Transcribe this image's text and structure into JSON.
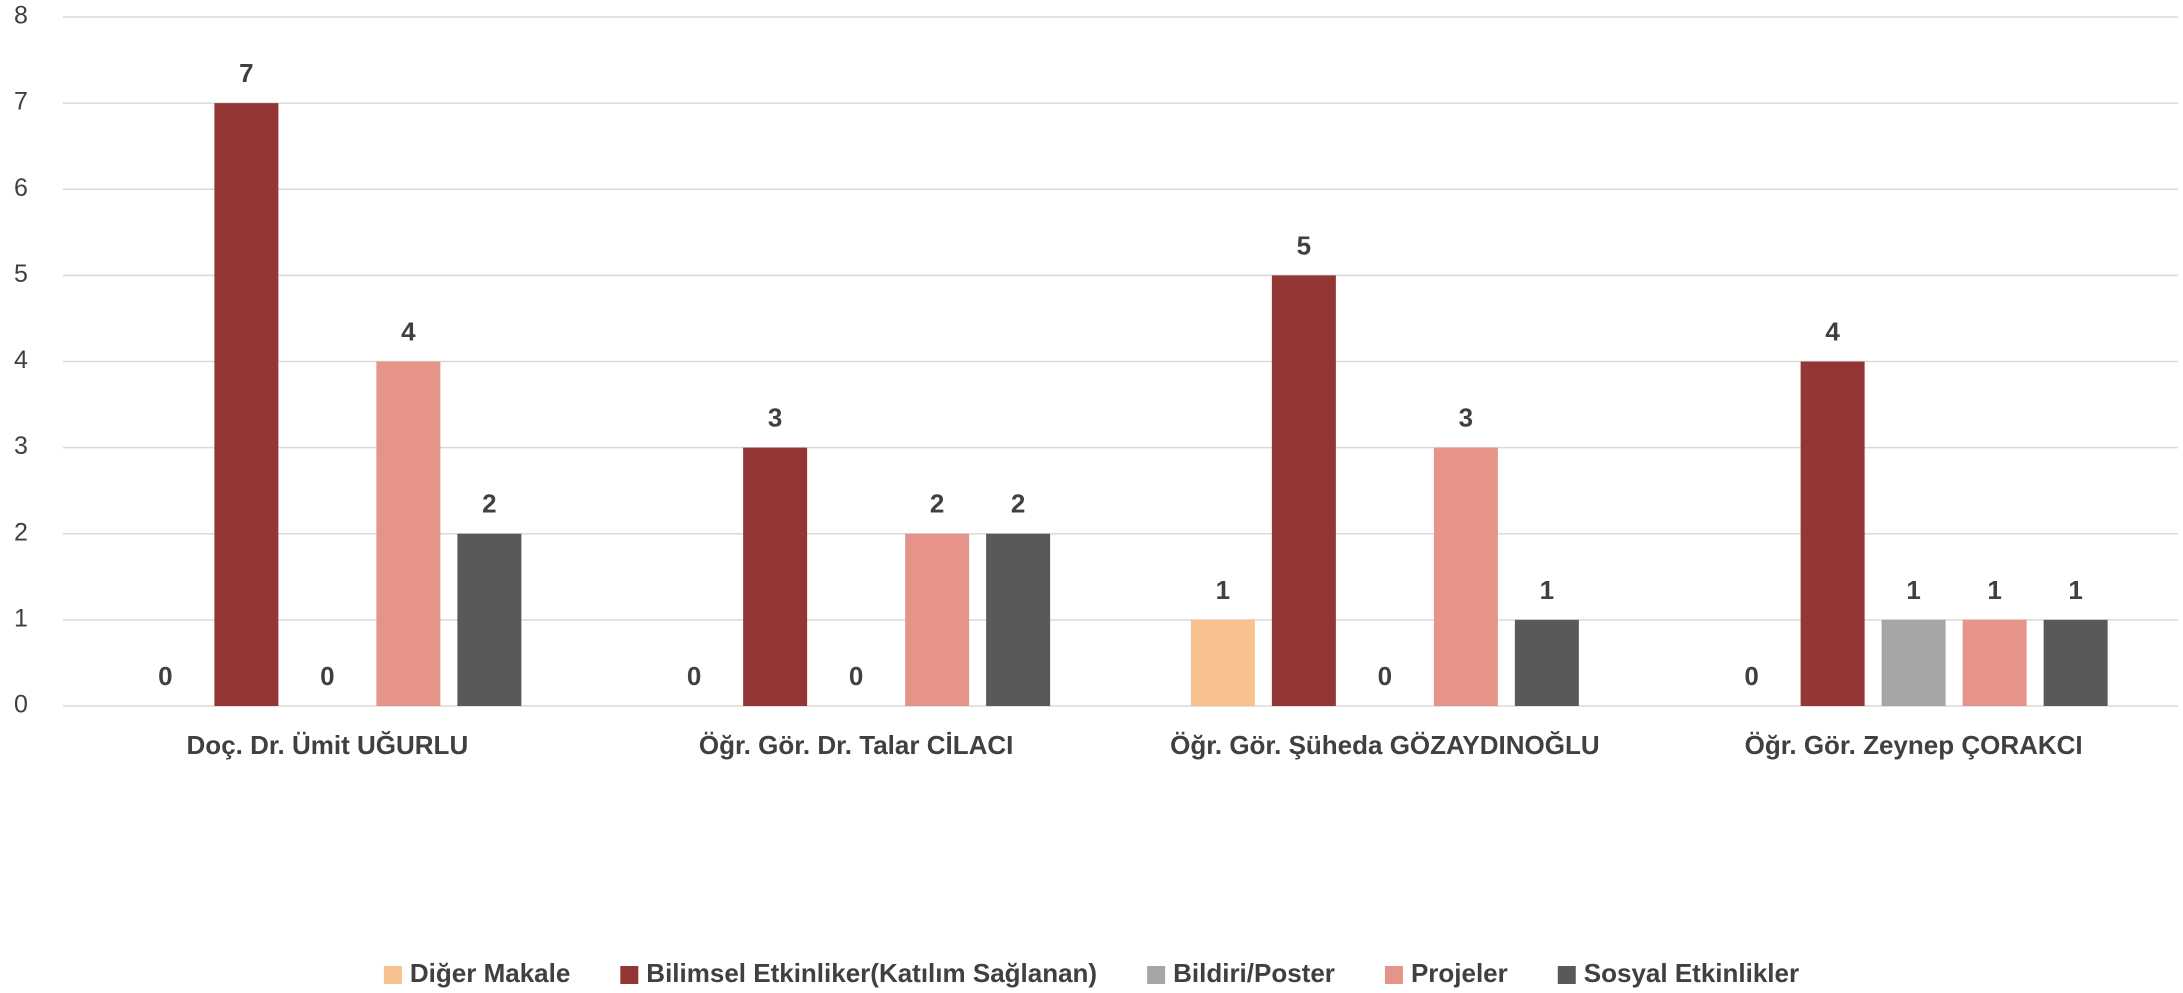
{
  "chart_data": {
    "type": "bar",
    "categories": [
      "Doç. Dr. Ümit UĞURLU",
      "Öğr. Gör. Dr. Talar CİLACI",
      "Öğr. Gör. Şüheda GÖZAYDINOĞLU",
      "Öğr. Gör. Zeynep ÇORAKCI"
    ],
    "series": [
      {
        "name": "Diğer Makale",
        "color": "#f8c290",
        "values": [
          0,
          0,
          1,
          0
        ]
      },
      {
        "name": "Bilimsel Etkinliker(Katılım Sağlanan)",
        "color": "#943634",
        "values": [
          7,
          3,
          5,
          4
        ]
      },
      {
        "name": "Bildiri/Poster",
        "color": "#a6a6a6",
        "values": [
          0,
          0,
          0,
          1
        ]
      },
      {
        "name": "Projeler",
        "color": "#e6948a",
        "values": [
          4,
          2,
          3,
          1
        ]
      },
      {
        "name": "Sosyal Etkinlikler",
        "color": "#595959",
        "values": [
          2,
          2,
          1,
          1
        ]
      }
    ],
    "ylim": [
      0,
      8
    ],
    "yticks": [
      0,
      1,
      2,
      3,
      4,
      5,
      6,
      7,
      8
    ],
    "grid": true,
    "legend": "bottom"
  }
}
